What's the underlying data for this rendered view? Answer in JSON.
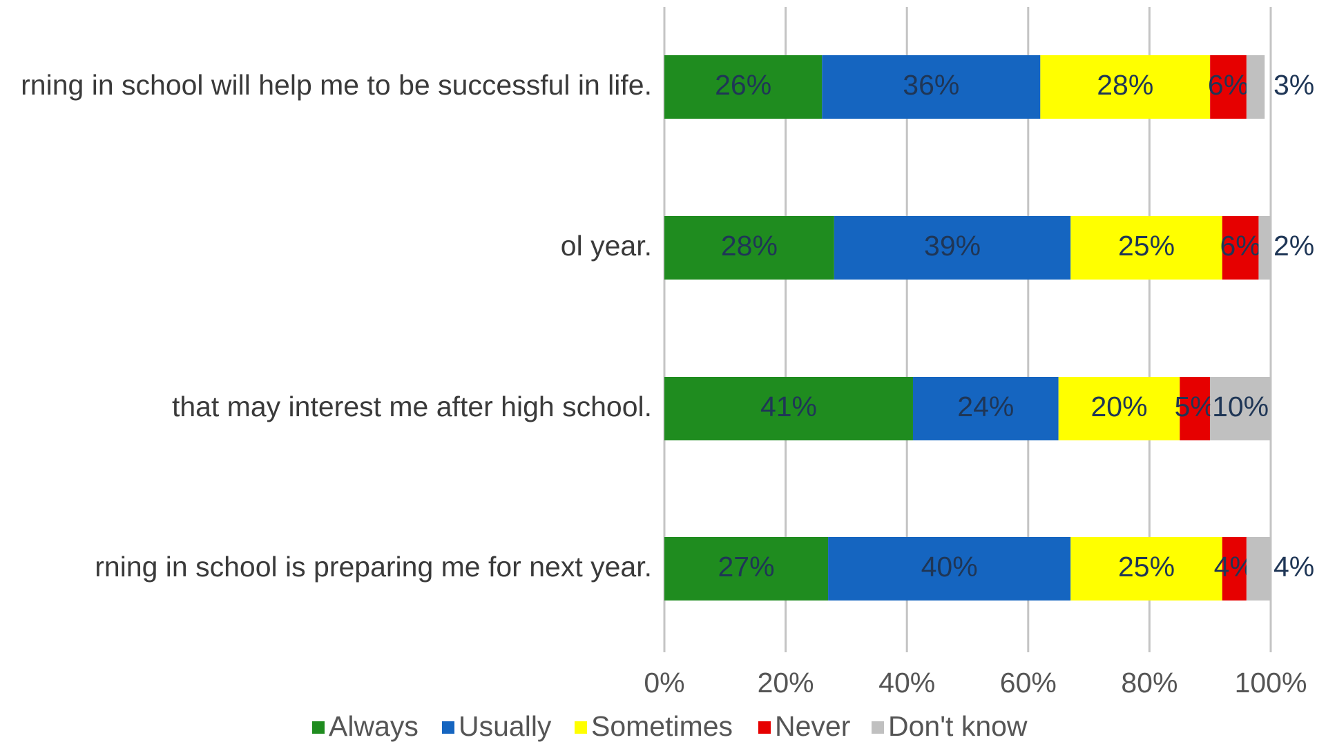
{
  "chart_data": {
    "type": "bar",
    "orientation": "horizontal",
    "stacked": true,
    "categories": [
      "rning in school will help me to be successful in life.",
      "ol year.",
      "that may interest me after high school.",
      "rning in school is preparing me for next year."
    ],
    "series": [
      {
        "name": "Always",
        "color": "#1f8c1f",
        "values": [
          26,
          28,
          41,
          27
        ]
      },
      {
        "name": "Usually",
        "color": "#1565c0",
        "values": [
          36,
          39,
          24,
          40
        ]
      },
      {
        "name": "Sometimes",
        "color": "#ffff00",
        "values": [
          28,
          25,
          20,
          25
        ]
      },
      {
        "name": "Never",
        "color": "#e60000",
        "values": [
          6,
          6,
          5,
          4
        ]
      },
      {
        "name": "Don't know",
        "color": "#c0c0c0",
        "values": [
          3,
          2,
          10,
          4
        ]
      }
    ],
    "data_labels": [
      [
        "26%",
        "36%",
        "28%",
        "6%",
        "3%"
      ],
      [
        "28%",
        "39%",
        "25%",
        "6%",
        "2%"
      ],
      [
        "41%",
        "24%",
        "20%",
        "5%",
        "10%"
      ],
      [
        "27%",
        "40%",
        "25%",
        "4%",
        "4%"
      ]
    ],
    "x_ticks": [
      "0%",
      "20%",
      "40%",
      "60%",
      "80%",
      "100%"
    ],
    "xlim": [
      0,
      100
    ],
    "grid": "vertical",
    "legend_position": "bottom"
  }
}
